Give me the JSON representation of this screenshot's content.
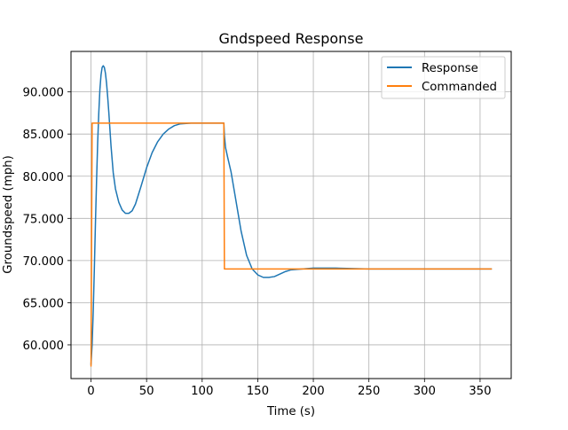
{
  "chart_data": {
    "type": "line",
    "title": "Gndspeed Response",
    "xlabel": "Time (s)",
    "ylabel": "Groundspeed (mph)",
    "xlim": [
      -18,
      378
    ],
    "ylim": [
      56.0,
      94.8
    ],
    "xticks": [
      0,
      50,
      100,
      150,
      200,
      250,
      300,
      350
    ],
    "xtick_labels": [
      "0",
      "50",
      "100",
      "150",
      "200",
      "250",
      "300",
      "350"
    ],
    "yticks": [
      60,
      65,
      70,
      75,
      80,
      85,
      90
    ],
    "ytick_labels": [
      "60.000",
      "65.000",
      "70.000",
      "75.000",
      "80.000",
      "85.000",
      "90.000"
    ],
    "grid": true,
    "legend_position": "top-right",
    "series": [
      {
        "name": "Response",
        "color": "#1f77b4",
        "points": [
          [
            0,
            57.7
          ],
          [
            1,
            60.0
          ],
          [
            2,
            64.0
          ],
          [
            3,
            69.0
          ],
          [
            4,
            74.5
          ],
          [
            5,
            79.5
          ],
          [
            6,
            84.0
          ],
          [
            7,
            87.5
          ],
          [
            8,
            90.3
          ],
          [
            9,
            92.0
          ],
          [
            10,
            92.9
          ],
          [
            11,
            93.1
          ],
          [
            12,
            92.9
          ],
          [
            13,
            92.2
          ],
          [
            14,
            91.0
          ],
          [
            15,
            89.4
          ],
          [
            16,
            87.6
          ],
          [
            17,
            85.6
          ],
          [
            18,
            83.6
          ],
          [
            20,
            80.4
          ],
          [
            22,
            78.5
          ],
          [
            25,
            76.9
          ],
          [
            28,
            76.0
          ],
          [
            31,
            75.6
          ],
          [
            34,
            75.6
          ],
          [
            37,
            75.9
          ],
          [
            40,
            76.7
          ],
          [
            45,
            78.8
          ],
          [
            50,
            81.0
          ],
          [
            55,
            82.8
          ],
          [
            60,
            84.1
          ],
          [
            65,
            85.0
          ],
          [
            70,
            85.6
          ],
          [
            75,
            86.0
          ],
          [
            80,
            86.2
          ],
          [
            90,
            86.3
          ],
          [
            100,
            86.3
          ],
          [
            110,
            86.3
          ],
          [
            119.5,
            86.3
          ],
          [
            120,
            84.8
          ],
          [
            121,
            83.4
          ],
          [
            123,
            82.2
          ],
          [
            126,
            80.5
          ],
          [
            130,
            77.4
          ],
          [
            135,
            73.5
          ],
          [
            140,
            70.6
          ],
          [
            145,
            69.0
          ],
          [
            150,
            68.3
          ],
          [
            155,
            68.0
          ],
          [
            160,
            68.0
          ],
          [
            165,
            68.1
          ],
          [
            170,
            68.4
          ],
          [
            175,
            68.7
          ],
          [
            180,
            68.9
          ],
          [
            190,
            69.0
          ],
          [
            200,
            69.1
          ],
          [
            220,
            69.1
          ],
          [
            250,
            69.0
          ],
          [
            300,
            69.0
          ],
          [
            360,
            69.0
          ]
        ]
      },
      {
        "name": "Commanded",
        "color": "#ff7f0e",
        "points": [
          [
            0,
            57.5
          ],
          [
            1,
            86.3
          ],
          [
            119.5,
            86.3
          ],
          [
            120,
            69.0
          ],
          [
            360,
            69.0
          ]
        ]
      }
    ]
  }
}
